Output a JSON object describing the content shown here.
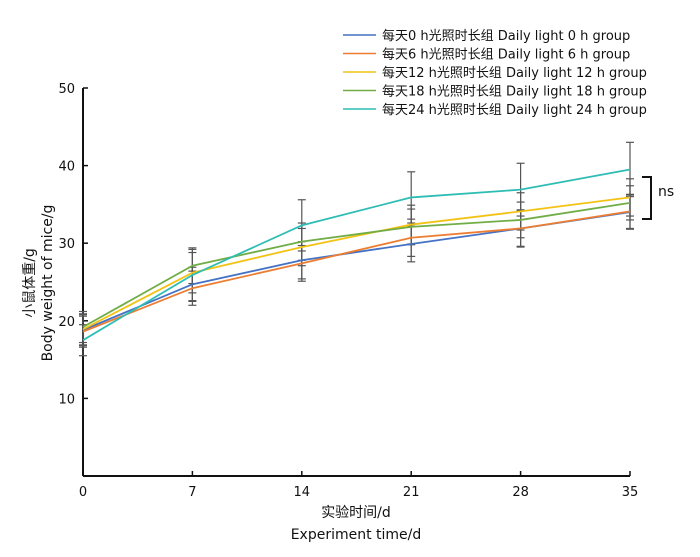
{
  "chart_data": {
    "type": "line",
    "title": "",
    "xlabel_cn": "实验时间/d",
    "xlabel": "Experiment time/d",
    "ylabel_cn": "小鼠体重/g",
    "ylabel": "Body weight of mice/g",
    "x": [
      0,
      7,
      14,
      21,
      28,
      35
    ],
    "xticks": [
      "0",
      "7",
      "14",
      "21",
      "28",
      "35"
    ],
    "yticks": [
      "10",
      "20",
      "30",
      "40",
      "50"
    ],
    "xlim": [
      0,
      35
    ],
    "ylim": [
      0,
      50
    ],
    "grid": false,
    "legend_position": "top-right",
    "series": [
      {
        "name": "每天0 h光照时长组   Daily light 0 h group",
        "color": "#4472c4",
        "values": [
          18.8,
          24.7,
          27.8,
          29.9,
          31.9,
          34.0
        ],
        "errors": [
          2.0,
          2.2,
          2.4,
          2.3,
          2.4,
          2.2
        ]
      },
      {
        "name": "每天6 h光照时长组   Daily light 6 h group",
        "color": "#ed7d31",
        "values": [
          18.6,
          24.2,
          27.4,
          30.7,
          31.9,
          34.1
        ],
        "errors": [
          2.0,
          2.2,
          2.3,
          2.4,
          2.3,
          2.2
        ]
      },
      {
        "name": "每天12 h光照时长组   Daily light 12 h group",
        "color": "#f2c314",
        "values": [
          18.9,
          26.2,
          29.5,
          32.4,
          34.1,
          35.9
        ],
        "errors": [
          2.0,
          2.6,
          2.4,
          2.5,
          2.4,
          2.4
        ]
      },
      {
        "name": "每天18 h光照时长组   Daily light 18 h group",
        "color": "#70ad47",
        "values": [
          19.2,
          27.1,
          30.2,
          32.1,
          33.0,
          35.2
        ],
        "errors": [
          2.0,
          2.3,
          2.4,
          2.3,
          2.3,
          2.2
        ]
      },
      {
        "name": "每天24 h光照时长组   Daily light 24 h group",
        "color": "#2ebdb5",
        "values": [
          17.5,
          25.9,
          32.3,
          35.9,
          36.9,
          39.5
        ],
        "errors": [
          2.0,
          3.3,
          3.3,
          3.3,
          3.4,
          3.5
        ]
      }
    ],
    "annotation": "ns"
  }
}
